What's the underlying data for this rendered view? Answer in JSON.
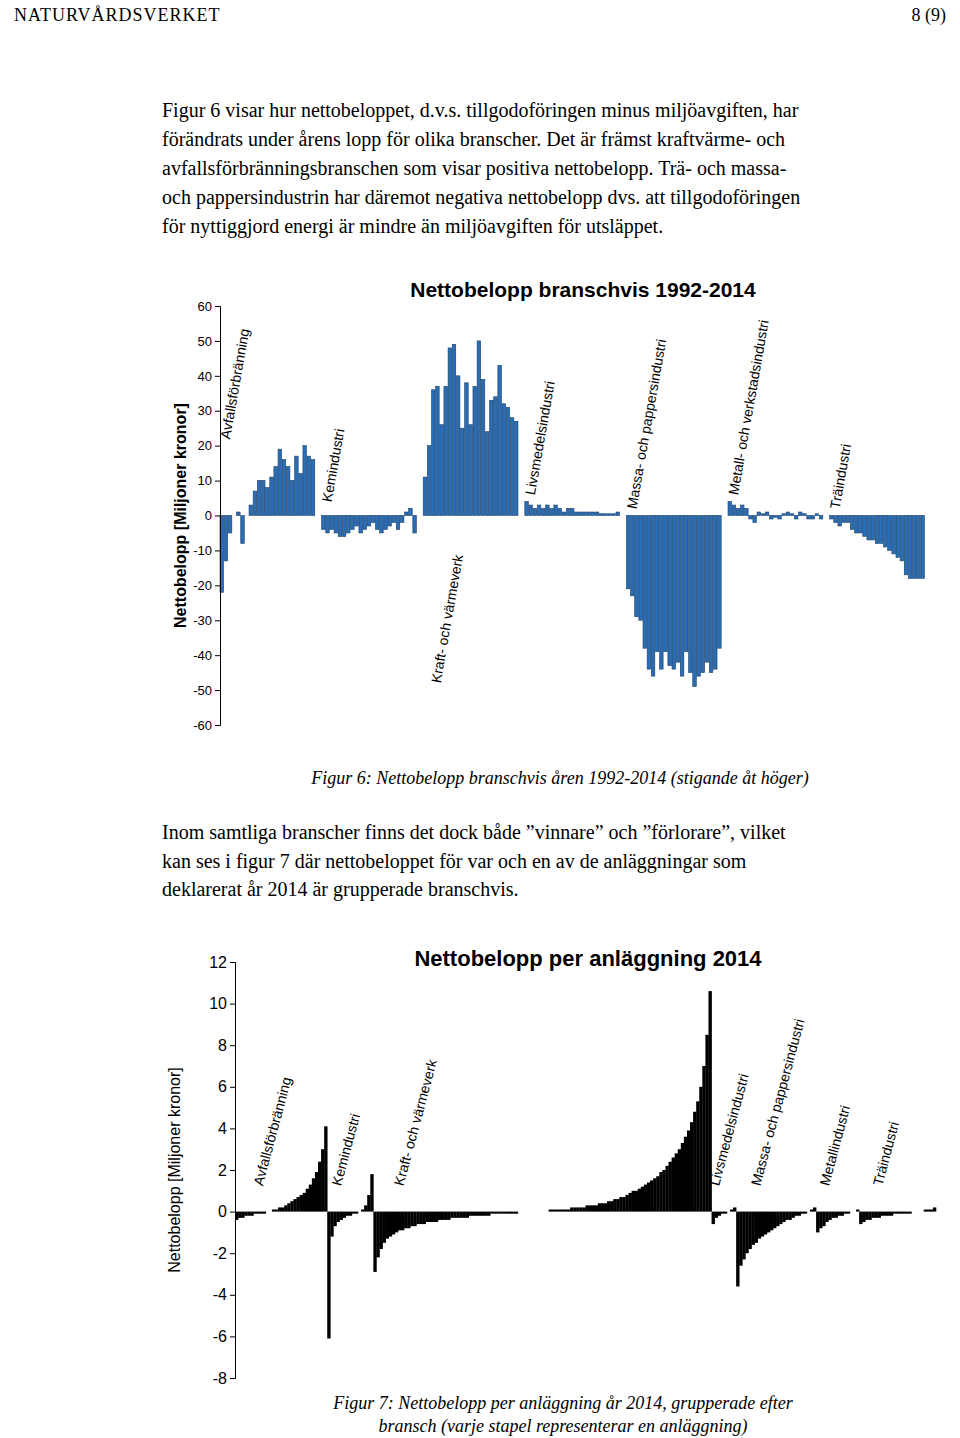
{
  "header": {
    "left": "NATURVÅRDSVERKET",
    "right": "8 (9)"
  },
  "paragraphs": [
    {
      "lines": [
        "Figur 6 visar hur nettobeloppet, d.v.s. tillgodoföringen minus miljöavgiften, har",
        "förändrats under årens lopp för olika branscher. Det är främst kraftvärme- och",
        "avfallsförbränningsbranschen som visar positiva nettobelopp. Trä- och massa-",
        "och pappersindustrin har däremot negativa nettobelopp dvs. att tillgodoföringen",
        "för nyttiggjord energi är mindre än miljöavgiften för utsläppet."
      ]
    },
    {
      "lines": [
        "Inom samtliga branscher finns det dock både ”vinnare” och ”förlorare”, vilket",
        "kan ses i figur 7 där nettobeloppet för var och en av de anläggningar som",
        "deklarerat år 2014 är grupperade branschvis."
      ]
    }
  ],
  "chart_data": [
    {
      "type": "bar",
      "title": "Nettobelopp branschvis 1992-2014",
      "y_label": "Nettobelopp [Miljoner kronor]",
      "ylim": [
        -60,
        60
      ],
      "yticks": [
        -60,
        -50,
        -40,
        -30,
        -20,
        -10,
        0,
        10,
        20,
        30,
        40,
        50,
        60
      ],
      "tick_labels": "y",
      "color": "#2a6db5",
      "series": [
        {
          "name": "Avfallsförbränning",
          "values": [
            -22,
            -13,
            -5,
            0,
            1,
            -8,
            0,
            3,
            7,
            10,
            10,
            8,
            11,
            14,
            19,
            16,
            14,
            10,
            17,
            12,
            20,
            17,
            16
          ]
        },
        {
          "name": "Kemindustri",
          "values": [
            -4,
            -5,
            -4,
            -5,
            -6,
            -6,
            -5,
            -4,
            -3,
            -5,
            -4,
            -3,
            -2,
            -4,
            -5,
            -4,
            -3,
            -2,
            -4,
            -2,
            1,
            2,
            -5
          ]
        },
        {
          "name": "Kraft- och värmeverk",
          "values": [
            11,
            20,
            36,
            37,
            26,
            37,
            48,
            49,
            40,
            25,
            38,
            26,
            37,
            50,
            39,
            24,
            33,
            34,
            43,
            32,
            31,
            28,
            27
          ]
        },
        {
          "name": "Livsmedelsindustri",
          "values": [
            4,
            3,
            2,
            3,
            2,
            3,
            2,
            3,
            2,
            1,
            2,
            2,
            1,
            1,
            1,
            1,
            1,
            1,
            0.5,
            0.5,
            0.5,
            0.5,
            1
          ]
        },
        {
          "name": "Massa- och pappersindustri",
          "values": [
            -21,
            -23,
            -29,
            -30,
            -38,
            -44,
            -46,
            -39,
            -44,
            -39,
            -43,
            -44,
            -42,
            -46,
            -39,
            -45,
            -49,
            -46,
            -45,
            -42,
            -45,
            -44,
            -38
          ]
        },
        {
          "name": "Metall- och verkstadsindustri",
          "values": [
            4,
            3,
            2,
            3,
            2,
            -1,
            -2,
            1,
            0.5,
            1,
            -1,
            -0.5,
            -1,
            0.5,
            1,
            0.5,
            -1,
            1,
            0.5,
            -1,
            -1,
            0.5,
            -1
          ]
        },
        {
          "name": "Träindustri",
          "values": [
            -1,
            -2,
            -3,
            -2,
            -2,
            -4,
            -5,
            -5,
            -6,
            -7,
            -7,
            -8,
            -8,
            -9,
            -10,
            -11,
            -12,
            -13,
            -17,
            -18,
            -18,
            -18,
            -18
          ]
        }
      ]
    },
    {
      "type": "bar",
      "title": "Nettobelopp per anläggning 2014",
      "y_label": "Nettobelopp  [Miljoner  kronor]",
      "ylim": [
        -8,
        12
      ],
      "yticks": [
        -8,
        -6,
        -4,
        -2,
        0,
        2,
        4,
        6,
        8,
        10,
        12
      ],
      "tick_labels": "y",
      "color": "#000000",
      "series": [
        {
          "name": "Avfallsförbränning",
          "values": [
            -0.4,
            -0.3,
            -0.3,
            -0.2,
            -0.2,
            -0.2,
            -0.1,
            -0.1,
            -0.1,
            -0.1,
            0,
            0,
            0.1,
            0.1,
            0.2,
            0.2,
            0.3,
            0.4,
            0.5,
            0.6,
            0.7,
            0.8,
            0.9,
            1.1,
            1.3,
            1.6,
            1.9,
            2.4,
            3.0,
            4.1
          ]
        },
        {
          "name": "Kemindustri",
          "values": [
            -6.1,
            -1.2,
            -0.7,
            -0.5,
            -0.4,
            -0.3,
            -0.2,
            -0.2,
            -0.1,
            -0.1,
            0,
            0.1,
            0.3,
            0.8,
            1.8
          ]
        },
        {
          "name": "Kraft- och värmeverk",
          "values": [
            -2.9,
            -2.2,
            -1.8,
            -1.5,
            -1.3,
            -1.2,
            -1.1,
            -1.0,
            -0.9,
            -0.9,
            -0.8,
            -0.8,
            -0.7,
            -0.7,
            -0.6,
            -0.6,
            -0.6,
            -0.5,
            -0.5,
            -0.5,
            -0.5,
            -0.4,
            -0.4,
            -0.4,
            -0.4,
            -0.3,
            -0.3,
            -0.3,
            -0.3,
            -0.3,
            -0.3,
            -0.2,
            -0.2,
            -0.2,
            -0.2,
            -0.2,
            -0.2,
            -0.2,
            -0.1,
            -0.1,
            -0.1,
            -0.1,
            -0.1,
            -0.1,
            -0.1,
            -0.1,
            -0.1,
            0,
            0,
            0,
            0,
            0,
            0,
            0,
            0,
            0,
            0,
            0.1,
            0.1,
            0.1,
            0.1,
            0.1,
            0.1,
            0.1,
            0.2,
            0.2,
            0.2,
            0.2,
            0.2,
            0.3,
            0.3,
            0.3,
            0.3,
            0.4,
            0.4,
            0.4,
            0.5,
            0.5,
            0.6,
            0.6,
            0.7,
            0.7,
            0.8,
            0.9,
            1.0,
            1.0,
            1.1,
            1.2,
            1.3,
            1.4,
            1.5,
            1.6,
            1.7,
            1.9,
            2.0,
            2.2,
            2.4,
            2.6,
            2.8,
            3.0,
            3.3,
            3.6,
            3.9,
            4.3,
            4.8,
            5.3,
            6.0,
            7.0,
            8.5,
            10.6
          ]
        },
        {
          "name": "Livsmedelsindustri",
          "values": [
            -0.6,
            -0.3,
            -0.2,
            -0.1,
            -0.1,
            0,
            0.1,
            0.2
          ]
        },
        {
          "name": "Massa- och pappersindustri",
          "values": [
            -3.6,
            -2.6,
            -2.3,
            -2.0,
            -1.8,
            -1.6,
            -1.5,
            -1.3,
            -1.2,
            -1.1,
            -1.0,
            -0.9,
            -0.8,
            -0.7,
            -0.6,
            -0.5,
            -0.4,
            -0.4,
            -0.3,
            -0.2,
            -0.2,
            -0.1,
            -0.1,
            0,
            0.1,
            0.2
          ]
        },
        {
          "name": "Metallindustri",
          "values": [
            -1.0,
            -0.8,
            -0.7,
            -0.5,
            -0.4,
            -0.3,
            -0.3,
            -0.2,
            -0.2,
            -0.1,
            -0.1,
            0,
            0,
            0.1
          ]
        },
        {
          "name": "Träindustri",
          "values": [
            -0.6,
            -0.5,
            -0.4,
            -0.4,
            -0.3,
            -0.3,
            -0.3,
            -0.2,
            -0.2,
            -0.2,
            -0.2,
            -0.1,
            -0.1,
            -0.1,
            -0.1,
            -0.1,
            -0.1,
            0,
            0,
            0,
            0,
            0.1,
            0.1,
            0.1,
            0.2
          ]
        }
      ]
    }
  ],
  "captions": [
    {
      "lines": [
        "Figur 6: Nettobelopp branschvis åren 1992-2014 (stigande åt höger)"
      ]
    },
    {
      "lines": [
        "Figur 7: Nettobelopp per anläggning år 2014, grupperade efter",
        "bransch (varje stapel representerar en anläggning)"
      ]
    }
  ]
}
